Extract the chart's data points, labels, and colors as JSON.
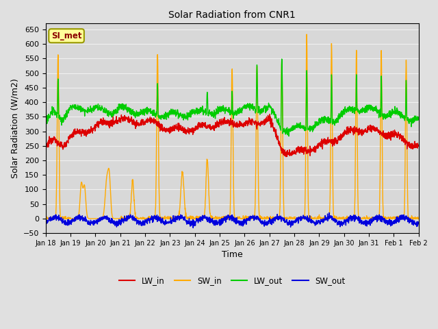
{
  "title": "Solar Radiation from CNR1",
  "xlabel": "Time",
  "ylabel": "Solar Radiation (W/m2)",
  "ylim": [
    -50,
    670
  ],
  "yticks": [
    -50,
    0,
    50,
    100,
    150,
    200,
    250,
    300,
    350,
    400,
    450,
    500,
    550,
    600,
    650
  ],
  "background_color": "#e0e0e0",
  "axes_bg_color": "#d8d8d8",
  "grid_color": "#f0f0f0",
  "line_colors": {
    "LW_in": "#dd0000",
    "SW_in": "#ffaa00",
    "LW_out": "#00cc00",
    "SW_out": "#0000dd"
  },
  "line_widths": {
    "LW_in": 1.0,
    "SW_in": 1.0,
    "LW_out": 1.0,
    "SW_out": 1.0
  },
  "annotation_text": "SI_met",
  "annotation_color": "#8b0000",
  "annotation_bg": "#ffff99",
  "n_points": 2160,
  "xtick_labels": [
    "Jan 18",
    "Jan 19",
    "Jan 20",
    "Jan 21",
    "Jan 22",
    "Jan 23",
    "Jan 24",
    "Jan 25",
    "Jan 26",
    "Jan 27",
    "Jan 28",
    "Jan 29",
    "Jan 30",
    "Jan 31",
    "Feb 1",
    "Feb 2"
  ],
  "figsize": [
    6.4,
    4.8
  ],
  "dpi": 100,
  "sw_in_peaks": [
    560,
    0,
    130,
    130,
    565,
    160,
    205,
    515,
    525,
    548,
    632,
    598,
    572,
    571,
    540,
    572
  ],
  "sw_in_widths": [
    0.8,
    0,
    1.5,
    1.2,
    0.8,
    1.5,
    1.2,
    0.8,
    0.8,
    0.8,
    0.7,
    0.7,
    0.7,
    0.7,
    0.7,
    0.7
  ],
  "lw_in_profile_x": [
    0,
    0.3,
    0.7,
    1.0,
    1.5,
    2.0,
    2.5,
    3.0,
    3.5,
    4.0,
    4.5,
    5.0,
    5.5,
    6.0,
    6.5,
    7.0,
    7.5,
    8.0,
    8.5,
    9.0,
    9.5,
    10.0,
    10.5,
    11.0,
    11.5,
    12.0,
    12.5,
    13.0,
    13.5,
    14.0,
    14.5,
    15.0
  ],
  "lw_in_profile_y": [
    240,
    270,
    255,
    280,
    300,
    315,
    330,
    340,
    335,
    330,
    330,
    300,
    310,
    305,
    320,
    325,
    330,
    325,
    330,
    340,
    235,
    225,
    235,
    250,
    265,
    290,
    305,
    305,
    295,
    290,
    265,
    250
  ],
  "lw_out_profile_x": [
    0,
    0.3,
    0.7,
    1.0,
    1.5,
    2.0,
    2.5,
    3.0,
    3.5,
    4.0,
    4.5,
    5.0,
    5.5,
    6.0,
    6.5,
    7.0,
    7.5,
    8.0,
    8.5,
    9.0,
    9.5,
    10.0,
    10.5,
    11.0,
    11.5,
    12.0,
    12.5,
    13.0,
    13.5,
    14.0,
    14.5,
    15.0
  ],
  "lw_out_profile_y": [
    310,
    370,
    350,
    370,
    380,
    375,
    370,
    375,
    370,
    365,
    360,
    355,
    360,
    360,
    370,
    365,
    370,
    375,
    380,
    380,
    310,
    305,
    315,
    325,
    340,
    360,
    380,
    375,
    365,
    360,
    345,
    340
  ]
}
